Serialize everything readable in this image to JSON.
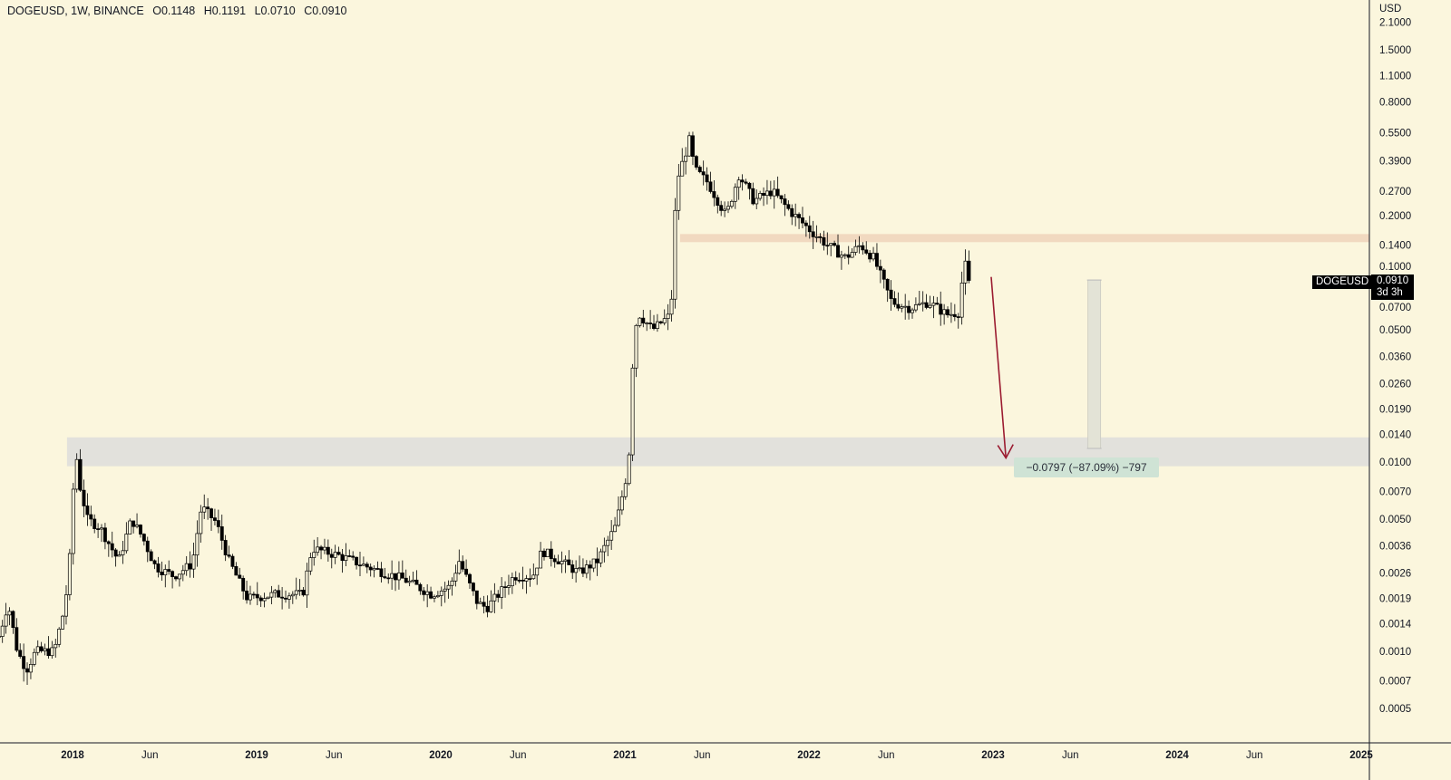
{
  "header": {
    "symbol": "DOGEUSD, 1W, BINANCE",
    "open": "O0.1148",
    "high": "H0.1191",
    "low": "L0.0710",
    "close": "C0.0910"
  },
  "price_label": {
    "symbol": "DOGEUSD",
    "price": "0.0910",
    "countdown": "3d 3h"
  },
  "measure_label": "−0.0797 (−87.09%) −797",
  "colors": {
    "background": "#fbf6dd",
    "resistance": "#f0d6bd",
    "support": "#dfdfdc",
    "arrow": "#9b1b30",
    "measure": "#cfe3d5"
  },
  "chart_data": {
    "type": "candlestick",
    "title": "DOGEUSD, 1W, BINANCE",
    "yscale": "log",
    "ylabel": "USD",
    "ylim": [
      0.00035,
      2.6
    ],
    "y_ticks": [
      "2.1000",
      "1.5000",
      "1.1000",
      "0.8000",
      "0.5500",
      "0.3900",
      "0.2700",
      "0.2000",
      "0.1400",
      "0.1000",
      "0.0700",
      "0.0500",
      "0.0360",
      "0.0260",
      "0.0190",
      "0.0140",
      "0.0100",
      "0.0070",
      "0.0050",
      "0.0036",
      "0.0026",
      "0.0019",
      "0.0014",
      "0.0010",
      "0.0007",
      "0.0005"
    ],
    "x_ticks": [
      {
        "label": "2018",
        "t": 2018.0,
        "year": true
      },
      {
        "label": "Jun",
        "t": 2018.42
      },
      {
        "label": "2019",
        "t": 2019.0,
        "year": true
      },
      {
        "label": "Jun",
        "t": 2019.42
      },
      {
        "label": "2020",
        "t": 2020.0,
        "year": true
      },
      {
        "label": "Jun",
        "t": 2020.42
      },
      {
        "label": "2021",
        "t": 2021.0,
        "year": true
      },
      {
        "label": "Jun",
        "t": 2021.42
      },
      {
        "label": "2022",
        "t": 2022.0,
        "year": true
      },
      {
        "label": "Jun",
        "t": 2022.42
      },
      {
        "label": "2023",
        "t": 2023.0,
        "year": true
      },
      {
        "label": "Jun",
        "t": 2023.42
      },
      {
        "label": "2024",
        "t": 2024.0,
        "year": true
      },
      {
        "label": "Jun",
        "t": 2024.42
      },
      {
        "label": "2025",
        "t": 2025.0,
        "year": true
      }
    ],
    "close_path": [
      [
        2017.6,
        0.0012
      ],
      [
        2017.65,
        0.0018
      ],
      [
        2017.7,
        0.001
      ],
      [
        2017.75,
        0.0008
      ],
      [
        2017.8,
        0.001
      ],
      [
        2017.9,
        0.001
      ],
      [
        2017.95,
        0.0016
      ],
      [
        2017.98,
        0.0025
      ],
      [
        2018.0,
        0.0065
      ],
      [
        2018.02,
        0.011
      ],
      [
        2018.04,
        0.0075
      ],
      [
        2018.08,
        0.005
      ],
      [
        2018.15,
        0.0045
      ],
      [
        2018.25,
        0.003
      ],
      [
        2018.32,
        0.005
      ],
      [
        2018.38,
        0.004
      ],
      [
        2018.45,
        0.0028
      ],
      [
        2018.55,
        0.0025
      ],
      [
        2018.65,
        0.0029
      ],
      [
        2018.7,
        0.0058
      ],
      [
        2018.78,
        0.0048
      ],
      [
        2018.85,
        0.003
      ],
      [
        2018.95,
        0.0019
      ],
      [
        2019.1,
        0.002
      ],
      [
        2019.25,
        0.002
      ],
      [
        2019.3,
        0.0035
      ],
      [
        2019.45,
        0.0032
      ],
      [
        2019.6,
        0.0028
      ],
      [
        2019.8,
        0.0024
      ],
      [
        2019.95,
        0.002
      ],
      [
        2020.05,
        0.0022
      ],
      [
        2020.1,
        0.003
      ],
      [
        2020.2,
        0.0018
      ],
      [
        2020.25,
        0.0017
      ],
      [
        2020.4,
        0.0025
      ],
      [
        2020.5,
        0.0025
      ],
      [
        2020.55,
        0.0034
      ],
      [
        2020.65,
        0.003
      ],
      [
        2020.75,
        0.0026
      ],
      [
        2020.85,
        0.003
      ],
      [
        2020.95,
        0.0046
      ],
      [
        2021.02,
        0.0095
      ],
      [
        2021.05,
        0.05
      ],
      [
        2021.08,
        0.06
      ],
      [
        2021.15,
        0.05
      ],
      [
        2021.25,
        0.06
      ],
      [
        2021.28,
        0.3
      ],
      [
        2021.35,
        0.5
      ],
      [
        2021.38,
        0.35
      ],
      [
        2021.45,
        0.3
      ],
      [
        2021.55,
        0.2
      ],
      [
        2021.62,
        0.33
      ],
      [
        2021.7,
        0.24
      ],
      [
        2021.8,
        0.27
      ],
      [
        2021.9,
        0.21
      ],
      [
        2022.0,
        0.17
      ],
      [
        2022.1,
        0.14
      ],
      [
        2022.2,
        0.12
      ],
      [
        2022.28,
        0.14
      ],
      [
        2022.35,
        0.12
      ],
      [
        2022.45,
        0.07
      ],
      [
        2022.55,
        0.065
      ],
      [
        2022.65,
        0.07
      ],
      [
        2022.75,
        0.06
      ],
      [
        2022.82,
        0.062
      ],
      [
        2022.84,
        0.12
      ],
      [
        2022.87,
        0.091
      ]
    ],
    "zones": [
      {
        "name": "resistance",
        "from": 0.145,
        "to": 0.16,
        "start": 2021.3
      },
      {
        "name": "support",
        "from": 0.0095,
        "to": 0.0135,
        "start": 2017.97
      }
    ],
    "projection": {
      "from": [
        2022.99,
        0.095
      ],
      "to": [
        2023.07,
        0.0105
      ]
    },
    "measure": {
      "t": 2023.55,
      "from": 0.0915,
      "to": 0.0118,
      "change": -0.0797,
      "percent": -87.09,
      "ticks": -797
    },
    "last_price": 0.091
  }
}
